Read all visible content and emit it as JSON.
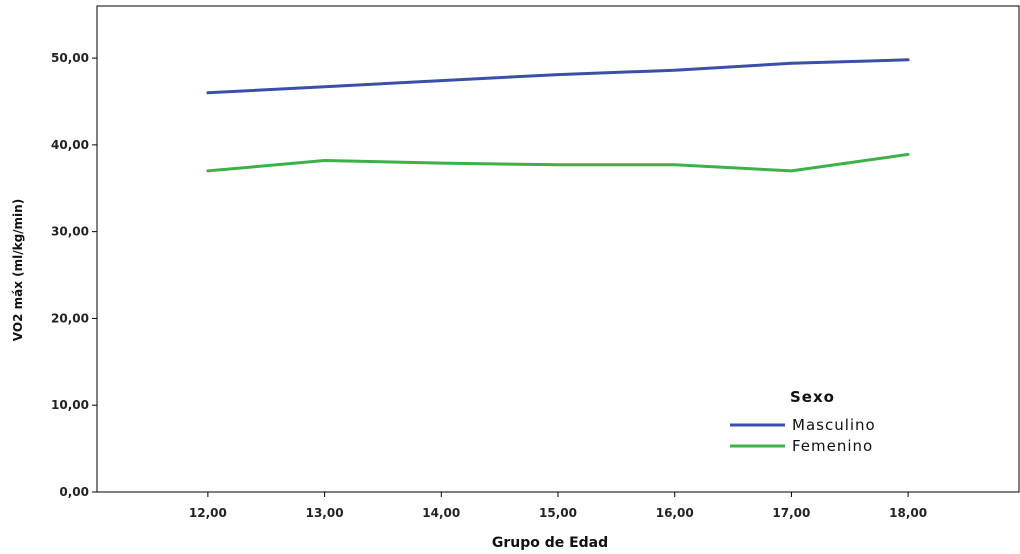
{
  "chart_data": {
    "type": "line",
    "title": "",
    "xlabel": "Grupo de Edad",
    "ylabel": "VO2 máx (ml/kg/min)",
    "x": [
      12,
      13,
      14,
      15,
      16,
      17,
      18
    ],
    "x_tick_labels": [
      "12,00",
      "13,00",
      "14,00",
      "15,00",
      "16,00",
      "17,00",
      "18,00"
    ],
    "xlim": [
      11.05,
      18.95
    ],
    "ylim": [
      0,
      56
    ],
    "y_ticks": [
      0,
      10,
      20,
      30,
      40,
      50
    ],
    "y_tick_labels": [
      "0,00",
      "10,00",
      "20,00",
      "30,00",
      "40,00",
      "50,00"
    ],
    "series": [
      {
        "name": "Masculino",
        "color": "#3a4fa8",
        "values": [
          46.0,
          46.7,
          47.4,
          48.1,
          48.6,
          49.4,
          49.8
        ]
      },
      {
        "name": "Femenino",
        "color": "#3db04a",
        "values": [
          37.0,
          38.2,
          37.9,
          37.7,
          37.7,
          37.0,
          38.9
        ]
      }
    ],
    "legend": {
      "title": "Sexo",
      "position": "bottom-right"
    },
    "grid": false
  }
}
